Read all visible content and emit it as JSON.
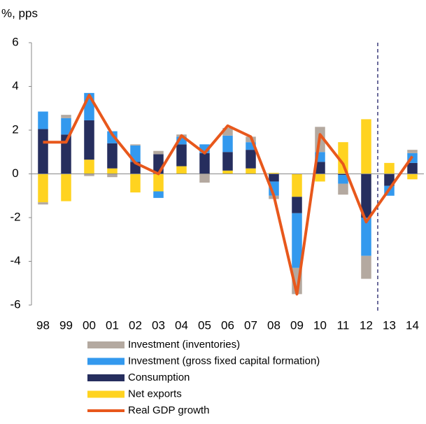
{
  "chart_data": {
    "type": "bar",
    "stacked": true,
    "title": "%, pps",
    "categories": [
      "98",
      "99",
      "00",
      "01",
      "02",
      "03",
      "04",
      "05",
      "06",
      "07",
      "08",
      "09",
      "10",
      "11",
      "12",
      "13",
      "14"
    ],
    "series": [
      {
        "name": "Net exports",
        "color": "#ffd320",
        "values": [
          -1.3,
          -1.25,
          0.65,
          0.25,
          -0.85,
          -0.8,
          0.35,
          0,
          0.15,
          0.25,
          0.05,
          -1.05,
          -0.35,
          1.45,
          2.5,
          0.5,
          -0.25
        ]
      },
      {
        "name": "Consumption",
        "color": "#262e5e",
        "values": [
          2.05,
          1.8,
          1.8,
          1.15,
          0.55,
          0.9,
          1.0,
          0.95,
          0.85,
          0.85,
          -0.35,
          -0.75,
          0.55,
          -0.05,
          -2.0,
          -0.55,
          0.5
        ]
      },
      {
        "name": "Investment (gross fixed capital formation)",
        "color": "#3399ee",
        "values": [
          0.8,
          0.75,
          1.25,
          0.55,
          0.75,
          -0.3,
          0.35,
          0.4,
          0.75,
          0.35,
          -0.65,
          -2.5,
          0.45,
          -0.4,
          -1.75,
          -0.45,
          0.45
        ]
      },
      {
        "name": "Investment (inventories)",
        "color": "#b4a9a0",
        "values": [
          -0.1,
          0.15,
          -0.1,
          -0.15,
          0.05,
          0.15,
          0.1,
          -0.4,
          0.35,
          0.25,
          -0.15,
          -1.2,
          1.15,
          -0.5,
          -1.05,
          0,
          0.15
        ]
      }
    ],
    "line": {
      "name": "Real GDP growth",
      "color": "#e8581c",
      "values": [
        1.45,
        1.45,
        3.6,
        1.8,
        0.5,
        0.0,
        1.75,
        0.95,
        2.2,
        1.7,
        -1.0,
        -5.5,
        1.8,
        0.45,
        -2.2,
        -0.7,
        0.8
      ]
    },
    "ylim": [
      -6,
      6
    ],
    "yticks": [
      -6,
      -4,
      -2,
      0,
      2,
      4,
      6
    ],
    "grid": false
  }
}
